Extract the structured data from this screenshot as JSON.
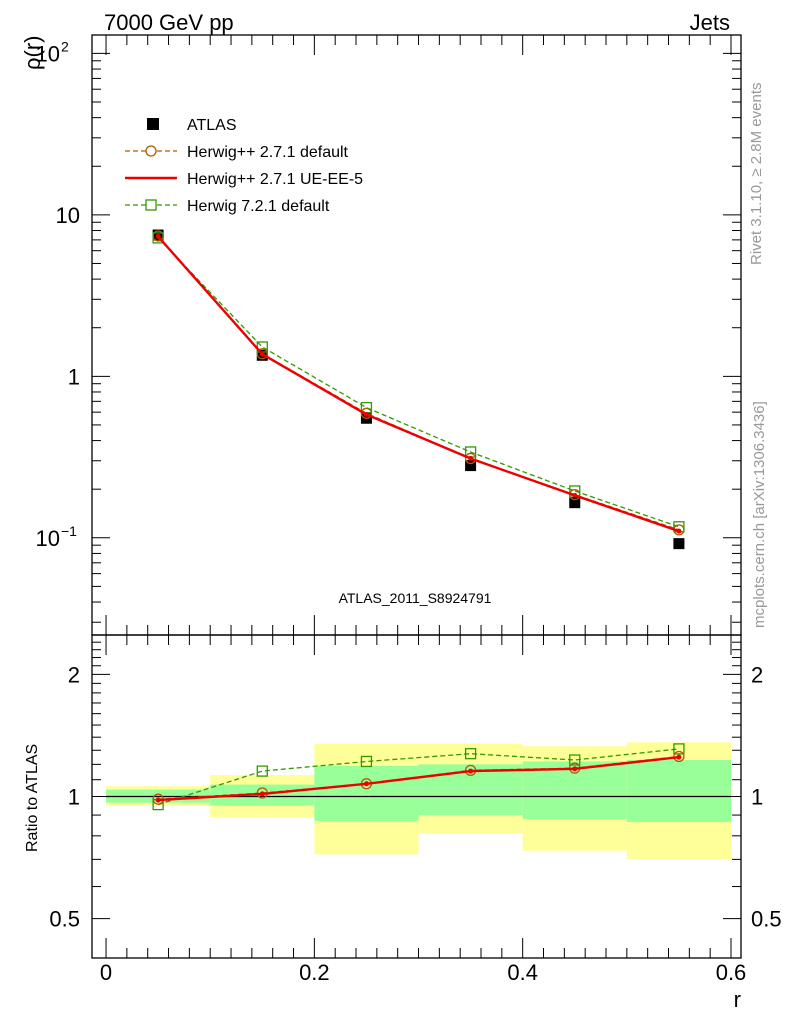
{
  "header": {
    "left": "7000 GeV pp",
    "right": "Jets"
  },
  "side_text": {
    "rivet": "Rivet 3.1.10, ≥ 2.8M events",
    "mcplots": "mcplots.cern.ch [arXiv:1306.3436]"
  },
  "watermark": "ATLAS_2011_S8924791",
  "colors": {
    "data": "#000000",
    "herwigpp_default": "#b35900",
    "herwigpp_ueee5": "#ee0000",
    "herwig7": "#339900",
    "band_inner": "#99ff99",
    "band_outer": "#ffff99"
  },
  "chart_data": [
    {
      "type": "line",
      "panel": "main",
      "ylabel": "ρ(r)",
      "yscale": "log",
      "xlim": [
        -0.013,
        0.6
      ],
      "ylim": [
        0.025,
        130
      ],
      "yticks": [
        {
          "value": 0.1,
          "label": "10",
          "sup": "−1"
        },
        {
          "value": 1,
          "label": "1",
          "sup": ""
        },
        {
          "value": 10,
          "label": "10",
          "sup": ""
        },
        {
          "value": 100,
          "label": "10",
          "sup": "2"
        }
      ],
      "legend": [
        "ATLAS",
        "Herwig++ 2.7.1 default",
        "Herwig++ 2.7.1 UE-EE-5",
        "Herwig 7.2.1 default"
      ],
      "x": [
        0.05,
        0.15,
        0.25,
        0.35,
        0.45,
        0.55
      ],
      "series": [
        {
          "name": "ATLAS",
          "style": "data",
          "values": [
            7.5,
            1.35,
            0.55,
            0.28,
            0.165,
            0.092
          ]
        },
        {
          "name": "Herwig++ 2.7.1 default",
          "style": "circle-dashed",
          "values": [
            7.4,
            1.38,
            0.59,
            0.31,
            0.185,
            0.112
          ]
        },
        {
          "name": "Herwig++ 2.7.1 UE-EE-5",
          "style": "solid",
          "values": [
            7.35,
            1.37,
            0.58,
            0.31,
            0.183,
            0.11
          ]
        },
        {
          "name": "Herwig 7.2.1 default",
          "style": "square-dashed",
          "values": [
            7.2,
            1.52,
            0.64,
            0.34,
            0.195,
            0.117
          ]
        }
      ]
    },
    {
      "type": "line",
      "panel": "ratio",
      "ylabel": "Ratio to ATLAS",
      "xlabel": "r",
      "yscale": "log",
      "xlim": [
        -0.013,
        0.6
      ],
      "ylim": [
        0.4,
        2.5
      ],
      "yticks": [
        {
          "value": 0.5,
          "label": "0.5"
        },
        {
          "value": 1,
          "label": "1"
        },
        {
          "value": 2,
          "label": "2"
        }
      ],
      "xticks": [
        {
          "value": 0,
          "label": "0"
        },
        {
          "value": 0.2,
          "label": "0.2"
        },
        {
          "value": 0.4,
          "label": "0.4"
        },
        {
          "value": 0.6,
          "label": "0.6"
        }
      ],
      "bins": [
        [
          0.0,
          0.1
        ],
        [
          0.1,
          0.2
        ],
        [
          0.2,
          0.3
        ],
        [
          0.3,
          0.4
        ],
        [
          0.4,
          0.5
        ],
        [
          0.5,
          0.6
        ]
      ],
      "band_inner": [
        [
          0.965,
          1.04
        ],
        [
          0.95,
          1.07
        ],
        [
          0.87,
          1.19
        ],
        [
          0.9,
          1.2
        ],
        [
          0.88,
          1.22
        ],
        [
          0.865,
          1.23
        ]
      ],
      "band_outer": [
        [
          0.95,
          1.06
        ],
        [
          0.89,
          1.13
        ],
        [
          0.72,
          1.35
        ],
        [
          0.81,
          1.35
        ],
        [
          0.735,
          1.33
        ],
        [
          0.7,
          1.36
        ]
      ],
      "x": [
        0.05,
        0.15,
        0.25,
        0.35,
        0.45,
        0.55
      ],
      "series": [
        {
          "name": "Herwig++ 2.7.1 default",
          "style": "circle-dashed",
          "values": [
            0.985,
            1.02,
            1.075,
            1.16,
            1.175,
            1.255
          ]
        },
        {
          "name": "Herwig++ 2.7.1 UE-EE-5",
          "style": "solid",
          "values": [
            0.98,
            1.015,
            1.075,
            1.155,
            1.17,
            1.25
          ]
        },
        {
          "name": "Herwig 7.2.1 default",
          "style": "square-dashed",
          "values": [
            0.955,
            1.155,
            1.22,
            1.275,
            1.23,
            1.31
          ]
        }
      ]
    }
  ]
}
